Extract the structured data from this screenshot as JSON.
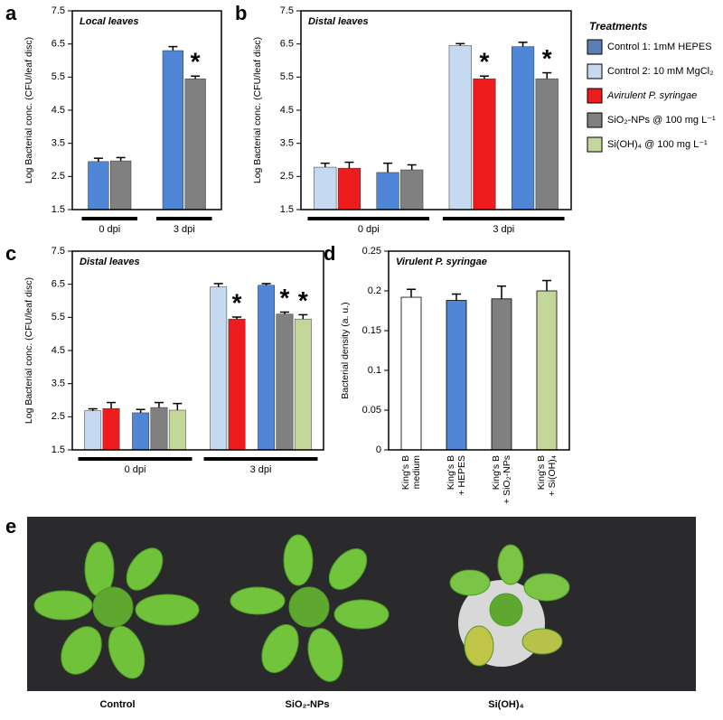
{
  "chart_data": [
    {
      "type": "bar",
      "panel_label": "a",
      "title": "Local leaves",
      "y_label": "Log Bacterial conc. (CFU/leaf disc)",
      "categories": [
        "0 dpi",
        "3 dpi"
      ],
      "series": [
        {
          "color": "#4f86d6",
          "values": [
            2.95,
            6.3
          ],
          "errors": [
            0.1,
            0.12
          ]
        },
        {
          "color": "#808080",
          "values": [
            2.97,
            5.45
          ],
          "errors": [
            0.1,
            0.08
          ],
          "markers": [
            null,
            "*"
          ]
        }
      ],
      "ylim": [
        1.5,
        7.5
      ],
      "yticks": [
        1.5,
        2.5,
        3.5,
        4.5,
        5.5,
        6.5,
        7.5
      ]
    },
    {
      "type": "bar",
      "panel_label": "b",
      "title": "Distal leaves",
      "y_label": "Log Bacterial conc. (CFU/leaf disc)",
      "categories": [
        "0 dpi",
        "3 dpi"
      ],
      "series": [
        {
          "color": "#c5d9f1",
          "values": [
            2.78,
            6.45
          ],
          "errors": [
            0.12,
            0.06
          ]
        },
        {
          "color": "#ee1c1c",
          "values": [
            2.75,
            5.45
          ],
          "errors": [
            0.18,
            0.08
          ],
          "markers": [
            null,
            "*"
          ]
        },
        {
          "color": "#4f86d6",
          "values": [
            2.62,
            6.42
          ],
          "errors": [
            0.28,
            0.13
          ]
        },
        {
          "color": "#808080",
          "values": [
            2.7,
            5.45
          ],
          "errors": [
            0.15,
            0.18
          ],
          "markers": [
            null,
            "*"
          ]
        }
      ],
      "ylim": [
        1.5,
        7.5
      ],
      "yticks": [
        1.5,
        2.5,
        3.5,
        4.5,
        5.5,
        6.5,
        7.5
      ]
    },
    {
      "type": "bar",
      "panel_label": "c",
      "title": "Distal leaves",
      "y_label": "Log Bacterial conc. (CFU/leaf disc)",
      "categories": [
        "0 dpi",
        "3 dpi"
      ],
      "series": [
        {
          "color": "#c5d9f1",
          "values": [
            2.68,
            6.42
          ],
          "errors": [
            0.06,
            0.1
          ]
        },
        {
          "color": "#ee1c1c",
          "values": [
            2.75,
            5.45
          ],
          "errors": [
            0.18,
            0.06
          ],
          "markers": [
            null,
            "*"
          ]
        },
        {
          "color": "#4f86d6",
          "values": [
            2.62,
            6.47
          ],
          "errors": [
            0.1,
            0.05
          ]
        },
        {
          "color": "#808080",
          "values": [
            2.78,
            5.6
          ],
          "errors": [
            0.15,
            0.06
          ],
          "markers": [
            null,
            "*"
          ]
        },
        {
          "color": "#c4d79b",
          "values": [
            2.7,
            5.45
          ],
          "errors": [
            0.2,
            0.13
          ],
          "markers": [
            null,
            "*"
          ]
        }
      ],
      "ylim": [
        1.5,
        7.5
      ],
      "yticks": [
        1.5,
        2.5,
        3.5,
        4.5,
        5.5,
        6.5,
        7.5
      ]
    },
    {
      "type": "column",
      "panel_label": "d",
      "title": "Virulent P. syringae",
      "y_label": "Bacterial density (a. u.)",
      "categories": [
        [
          "King's B",
          "medium"
        ],
        [
          "King's B",
          "+ HEPES"
        ],
        [
          "King's B",
          "+ SiO₂-NPs"
        ],
        [
          "King's B",
          "+ Si(OH)₄"
        ]
      ],
      "values": [
        0.192,
        0.188,
        0.19,
        0.2
      ],
      "errors": [
        0.01,
        0.008,
        0.016,
        0.013
      ],
      "colors": [
        "#ffffff",
        "#4f86d6",
        "#808080",
        "#c4d79b"
      ],
      "ylim": [
        0,
        0.25
      ],
      "yticks": [
        0,
        0.05,
        0.1,
        0.15,
        0.2,
        0.25
      ]
    }
  ],
  "legend": {
    "title": "Treatments",
    "items": [
      {
        "name": "Control 1: 1mM HEPES",
        "color": "#5b7fb5"
      },
      {
        "name": "Control 2: 10 mM MgCl₂",
        "color": "#c5d9f1"
      },
      {
        "name": "Avirulent P. syringae",
        "color": "#ee1c1c"
      },
      {
        "name": "SiO₂-NPs @ 100 mg L⁻¹",
        "color": "#808080"
      },
      {
        "name": "Si(OH)₄ @ 100 mg L⁻¹",
        "color": "#c4d79b"
      }
    ]
  },
  "photo": {
    "panel_label": "e",
    "captions": [
      "Control",
      "SiO₂-NPs",
      "Si(OH)₄"
    ]
  }
}
